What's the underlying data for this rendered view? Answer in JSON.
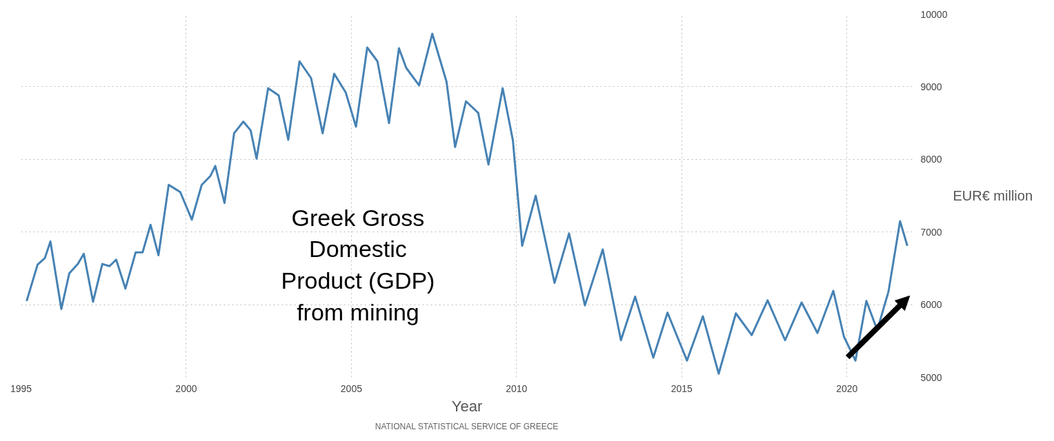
{
  "chart_data": {
    "type": "line",
    "xlabel": "Year",
    "ylabel": "EUR€ million",
    "annotations": [
      "Greek Gross Domestic Product (GDP) from mining",
      "NATIONAL STATISTICAL SERVICE OF GREECE"
    ],
    "x": [
      1995.17,
      1995.5,
      1995.72,
      1995.89,
      1996.22,
      1996.46,
      1996.72,
      1996.9,
      1997.18,
      1997.46,
      1997.68,
      1997.88,
      1998.16,
      1998.47,
      1998.68,
      1998.92,
      1999.16,
      1999.47,
      1999.82,
      2000.17,
      2000.47,
      2000.73,
      2000.88,
      2001.16,
      2001.45,
      2001.73,
      2001.95,
      2002.13,
      2002.48,
      2002.8,
      2003.09,
      2003.43,
      2003.78,
      2004.13,
      2004.48,
      2004.83,
      2005.14,
      2005.48,
      2005.79,
      2006.14,
      2006.44,
      2006.66,
      2007.05,
      2007.45,
      2007.88,
      2008.14,
      2008.47,
      2008.84,
      2009.15,
      2009.58,
      2009.89,
      2010.17,
      2010.58,
      2011.15,
      2011.59,
      2012.07,
      2012.61,
      2013.16,
      2013.59,
      2014.14,
      2014.57,
      2015.16,
      2015.64,
      2016.12,
      2016.64,
      2017.12,
      2017.6,
      2018.13,
      2018.63,
      2019.11,
      2019.59,
      2019.91,
      2020.26,
      2020.59,
      2020.92,
      2021.26,
      2021.61,
      2021.83
    ],
    "series": [
      {
        "color": "#4682b4",
        "values": [
          6050,
          6550,
          6640,
          6870,
          5940,
          6430,
          6560,
          6700,
          6040,
          6560,
          6530,
          6620,
          6220,
          6720,
          6720,
          7100,
          6680,
          7650,
          7550,
          7170,
          7650,
          7770,
          7910,
          7400,
          8360,
          8520,
          8400,
          8010,
          8980,
          8880,
          8270,
          9350,
          9120,
          8360,
          9180,
          8920,
          8450,
          9540,
          9350,
          8500,
          9530,
          9260,
          9020,
          9730,
          9070,
          8170,
          8800,
          8640,
          7930,
          8980,
          8260,
          6810,
          7500,
          6300,
          6980,
          5990,
          6760,
          5510,
          6110,
          5270,
          5890,
          5230,
          5840,
          5050,
          5880,
          5580,
          6060,
          5510,
          6030,
          5610,
          6190,
          5560,
          5230,
          6050,
          5650,
          6180,
          7150,
          6810
        ]
      }
    ],
    "xlim": [
      1995,
      2022
    ],
    "xticks": [
      1995,
      2000,
      2005,
      2010,
      2015,
      2020
    ],
    "ylim": [
      5000,
      10000
    ],
    "yticks": [
      5000,
      6000,
      7000,
      8000,
      9000,
      10000
    ],
    "grid": true,
    "line_style": "solid",
    "marker": "none"
  }
}
